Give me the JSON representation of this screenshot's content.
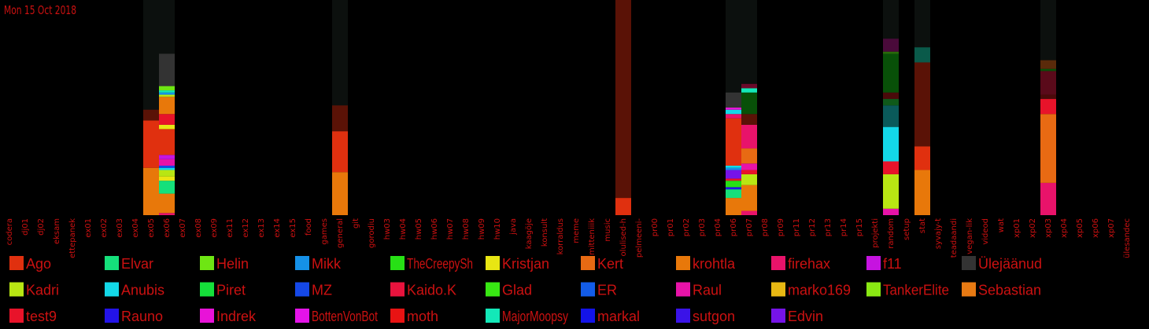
{
  "date_label": "Mon 15 Oct 2018",
  "colors": {
    "background": "#000000",
    "text": "#cc1111",
    "track": "#0c100e"
  },
  "chart_data": {
    "type": "bar",
    "stacked": true,
    "ylim": [
      0,
      100
    ],
    "categories": [
      "codera",
      "dj01",
      "dj02",
      "eksam",
      "ettepanek",
      "ex01",
      "ex02",
      "ex03",
      "ex04",
      "ex05",
      "ex06",
      "ex07",
      "ex08",
      "ex09",
      "ex11",
      "ex12",
      "ex13",
      "ex14",
      "ex15",
      "food",
      "games",
      "general",
      "git",
      "gorodiu",
      "hw03",
      "hw04",
      "hw05",
      "hw06",
      "hw07",
      "hw08",
      "hw09",
      "hw10",
      "java",
      "kaagöje",
      "konsult",
      "korraldus",
      "meme",
      "mitteniiik",
      "music",
      "olulised-h",
      "pelmeeni-",
      "pr00",
      "pr01",
      "pr02",
      "pr03",
      "pr04",
      "pr06",
      "pr07",
      "pr08",
      "pr09",
      "pr11",
      "pr12",
      "pr13",
      "pr14",
      "pr15",
      "projekti",
      "random",
      "setup",
      "stat",
      "syvajy-t",
      "teadaandi",
      "vegan-lik",
      "videod",
      "wat",
      "xp01",
      "xp02",
      "xp03",
      "xp04",
      "xp05",
      "xp06",
      "xp07",
      "ülesandec"
    ],
    "series": [
      {
        "name": "Ago",
        "color": "#e0300f"
      },
      {
        "name": "Elvar",
        "color": "#15e07b"
      },
      {
        "name": "Helin",
        "color": "#6ee613"
      },
      {
        "name": "Mikk",
        "color": "#1591e8"
      },
      {
        "name": "TheCreepySh",
        "color": "#27e015"
      },
      {
        "name": "Kristjan",
        "color": "#e8e613"
      },
      {
        "name": "Kert",
        "color": "#e86a13"
      },
      {
        "name": "krohtla",
        "color": "#e8780a"
      },
      {
        "name": "firehax",
        "color": "#e8136a"
      },
      {
        "name": "f11",
        "color": "#c613e0"
      },
      {
        "name": "Ülejäänud",
        "color": "#333333"
      },
      {
        "name": "Kadri",
        "color": "#b8e613"
      },
      {
        "name": "Anubis",
        "color": "#13d8e8"
      },
      {
        "name": "Piret",
        "color": "#15e03a"
      },
      {
        "name": "MZ",
        "color": "#1548e8"
      },
      {
        "name": "Kaido.K",
        "color": "#e8133d"
      },
      {
        "name": "Glad",
        "color": "#38e813"
      },
      {
        "name": "ER",
        "color": "#135ce8"
      },
      {
        "name": "Raul",
        "color": "#e813a8"
      },
      {
        "name": "marko169",
        "color": "#e8b813"
      },
      {
        "name": "TankerElite",
        "color": "#8ae813"
      },
      {
        "name": "Sebastian",
        "color": "#e87a13"
      },
      {
        "name": "test9",
        "color": "#e8132a"
      },
      {
        "name": "Rauno",
        "color": "#2313e8"
      },
      {
        "name": "Indrek",
        "color": "#e813d8"
      },
      {
        "name": "BottenVonBot",
        "color": "#e413e8"
      },
      {
        "name": "moth",
        "color": "#e81313"
      },
      {
        "name": "MajorMoopsy",
        "color": "#13e8b8"
      },
      {
        "name": "markal",
        "color": "#1313e8"
      },
      {
        "name": "sutgon",
        "color": "#3a13e8"
      },
      {
        "name": "Edvin",
        "color": "#7613e8"
      }
    ],
    "bars": [
      {
        "category": "ex05",
        "segments": [
          {
            "color": "#e8780a",
            "value": 22
          },
          {
            "color": "#e0300f",
            "value": 22
          },
          {
            "color": "#5a1206",
            "value": 5
          }
        ]
      },
      {
        "category": "ex06",
        "segments": [
          {
            "color": "#e8136a",
            "value": 1
          },
          {
            "color": "#e8780a",
            "value": 9
          },
          {
            "color": "#15e07b",
            "value": 6
          },
          {
            "color": "#e8e613",
            "value": 2
          },
          {
            "color": "#b8e613",
            "value": 3
          },
          {
            "color": "#13d8e8",
            "value": 1
          },
          {
            "color": "#1548e8",
            "value": 1
          },
          {
            "color": "#e813a8",
            "value": 3
          },
          {
            "color": "#c613e0",
            "value": 2
          },
          {
            "color": "#e0300f",
            "value": 12
          },
          {
            "color": "#e8e613",
            "value": 2
          },
          {
            "color": "#e8132a",
            "value": 5
          },
          {
            "color": "#e8780a",
            "value": 8
          },
          {
            "color": "#b8e613",
            "value": 1
          },
          {
            "color": "#1591e8",
            "value": 1
          },
          {
            "color": "#13e8b8",
            "value": 1
          },
          {
            "color": "#6ee613",
            "value": 2
          },
          {
            "color": "#333333",
            "value": 15
          }
        ]
      },
      {
        "category": "general",
        "segments": [
          {
            "color": "#e8780a",
            "value": 20
          },
          {
            "color": "#e0300f",
            "value": 19
          },
          {
            "color": "#5a1206",
            "value": 12
          }
        ]
      },
      {
        "category": "olulised-h",
        "segments": [
          {
            "color": "#e0300f",
            "value": 8
          },
          {
            "color": "#5a1206",
            "value": 92
          }
        ]
      },
      {
        "category": "pr06",
        "segments": [
          {
            "color": "#e8780a",
            "value": 8
          },
          {
            "color": "#15e07b",
            "value": 4
          },
          {
            "color": "#2313e8",
            "value": 1
          },
          {
            "color": "#27e015",
            "value": 3
          },
          {
            "color": "#e8132a",
            "value": 1
          },
          {
            "color": "#7613e8",
            "value": 4
          },
          {
            "color": "#1591e8",
            "value": 1
          },
          {
            "color": "#13d8e8",
            "value": 1
          },
          {
            "color": "#e0300f",
            "value": 22
          },
          {
            "color": "#e8136a",
            "value": 2
          },
          {
            "color": "#13d8e8",
            "value": 2
          },
          {
            "color": "#e813d8",
            "value": 1
          },
          {
            "color": "#333333",
            "value": 7
          }
        ]
      },
      {
        "category": "pr07",
        "segments": [
          {
            "color": "#e8136a",
            "value": 2
          },
          {
            "color": "#e8780a",
            "value": 12
          },
          {
            "color": "#b8e613",
            "value": 5
          },
          {
            "color": "#e8132a",
            "value": 2
          },
          {
            "color": "#e813a8",
            "value": 3
          },
          {
            "color": "#e86a13",
            "value": 7
          },
          {
            "color": "#e8136a",
            "value": 11
          },
          {
            "color": "#5a1206",
            "value": 5
          },
          {
            "color": "#085008",
            "value": 10
          },
          {
            "color": "#13e8b8",
            "value": 2
          },
          {
            "color": "#6a0a2a",
            "value": 2
          }
        ]
      },
      {
        "category": "random",
        "segments": [
          {
            "color": "#e813a8",
            "value": 3
          },
          {
            "color": "#b8e613",
            "value": 16
          },
          {
            "color": "#e8132a",
            "value": 6
          },
          {
            "color": "#13d8e8",
            "value": 16
          },
          {
            "color": "#0a5a5a",
            "value": 10
          },
          {
            "color": "#0f5a1a",
            "value": 3
          },
          {
            "color": "#4a0a0a",
            "value": 3
          },
          {
            "color": "#085008",
            "value": 18
          },
          {
            "color": "#2a6a0a",
            "value": 1
          },
          {
            "color": "#4a0a3a",
            "value": 6
          }
        ]
      },
      {
        "category": "stat",
        "segments": [
          {
            "color": "#e8780a",
            "value": 21
          },
          {
            "color": "#e0300f",
            "value": 11
          },
          {
            "color": "#5a1206",
            "value": 39
          },
          {
            "color": "#0a5a4a",
            "value": 7
          }
        ]
      },
      {
        "category": "xp03",
        "segments": [
          {
            "color": "#e8136a",
            "value": 15
          },
          {
            "color": "#e86a13",
            "value": 32
          },
          {
            "color": "#e8132a",
            "value": 7
          },
          {
            "color": "#4a0a0a",
            "value": 2
          },
          {
            "color": "#5a0a1a",
            "value": 11
          },
          {
            "color": "#085008",
            "value": 1
          },
          {
            "color": "#5a2a0a",
            "value": 4
          }
        ]
      }
    ]
  }
}
